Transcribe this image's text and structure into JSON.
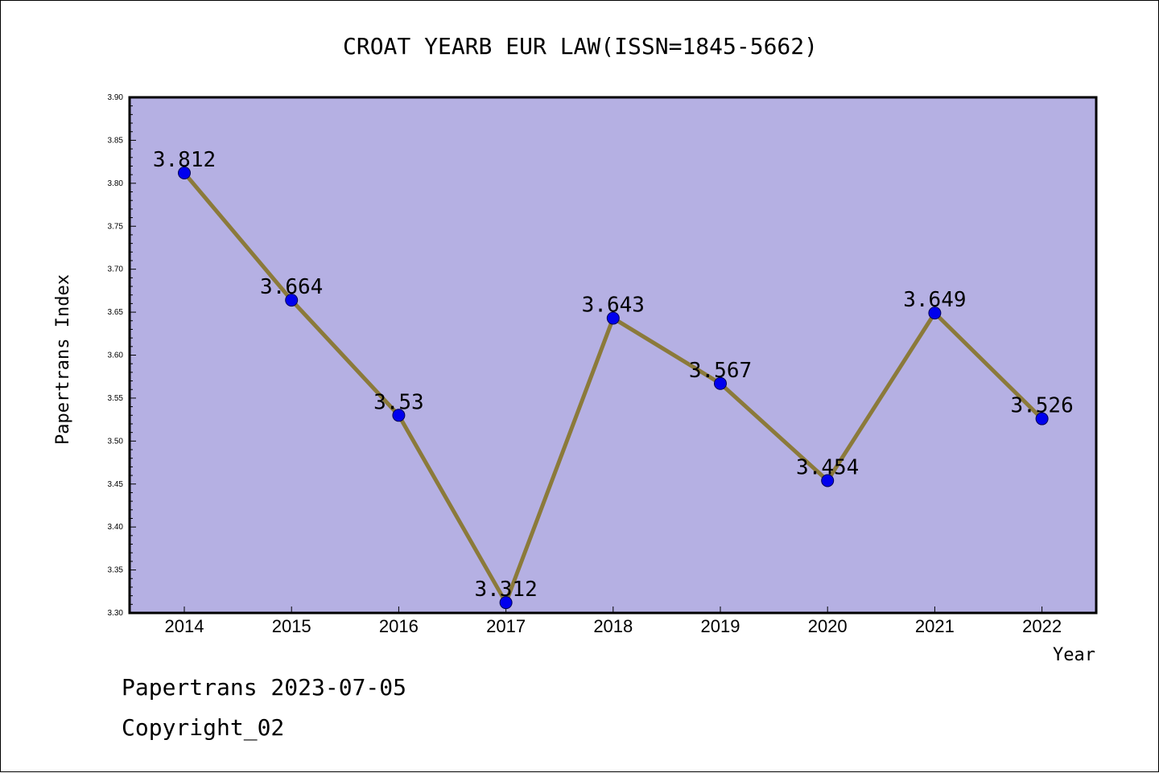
{
  "chart_data": {
    "type": "line",
    "title": "CROAT YEARB EUR LAW(ISSN=1845-5662)",
    "xlabel": "Year",
    "ylabel": "Papertrans Index",
    "x": [
      "2014",
      "2015",
      "2016",
      "2017",
      "2018",
      "2019",
      "2020",
      "2021",
      "2022"
    ],
    "values": [
      3.812,
      3.664,
      3.53,
      3.312,
      3.643,
      3.567,
      3.454,
      3.649,
      3.526
    ],
    "data_labels": [
      "3.812",
      "3.664",
      "3.53",
      "3.312",
      "3.643",
      "3.567",
      "3.454",
      "3.649",
      "3.526"
    ],
    "ylim": [
      3.3,
      3.9
    ],
    "yticks": [
      "3.30",
      "3.35",
      "3.40",
      "3.45",
      "3.50",
      "3.55",
      "3.60",
      "3.65",
      "3.70",
      "3.75",
      "3.80",
      "3.85",
      "3.90"
    ],
    "grid": false,
    "colors": {
      "plot_background": "#b5b0e3",
      "line": "#8b7a3a",
      "marker": "#0000ee"
    }
  },
  "footer": {
    "line1": "Papertrans 2023-07-05",
    "line2": "Copyright_02"
  }
}
